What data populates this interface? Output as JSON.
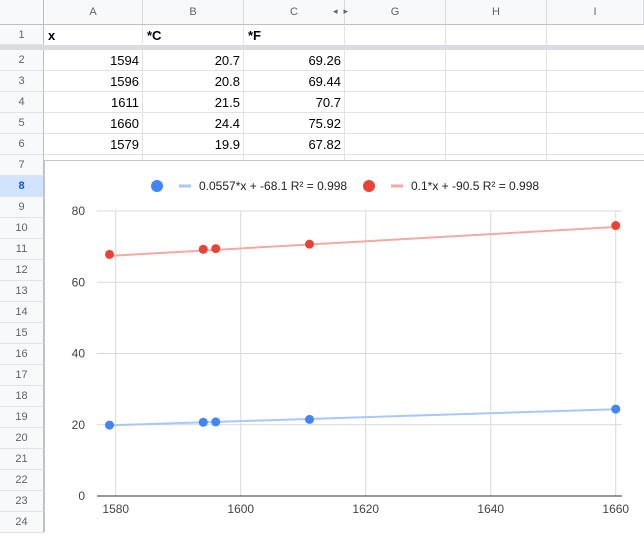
{
  "sheet": {
    "columns": [
      "A",
      "B",
      "C",
      "G",
      "H",
      "I"
    ],
    "rows": [
      "1",
      "2",
      "3",
      "4",
      "5",
      "6",
      "7",
      "8",
      "9",
      "10",
      "11",
      "12",
      "13",
      "14",
      "15",
      "16",
      "17",
      "18",
      "19",
      "20",
      "21",
      "22",
      "23",
      "24"
    ],
    "active_row": "8",
    "headers": {
      "a": "x",
      "b": "*C",
      "c": "*F"
    },
    "data": [
      {
        "a": "1594",
        "b": "20.7",
        "c": "69.26"
      },
      {
        "a": "1596",
        "b": "20.8",
        "c": "69.44"
      },
      {
        "a": "1611",
        "b": "21.5",
        "c": "70.7"
      },
      {
        "a": "1660",
        "b": "24.4",
        "c": "75.92"
      },
      {
        "a": "1579",
        "b": "19.9",
        "c": "67.82"
      }
    ]
  },
  "chart_data": {
    "type": "scatter",
    "title": "",
    "xlabel": "",
    "ylabel": "",
    "xlim": [
      1577,
      1661
    ],
    "ylim": [
      0,
      80
    ],
    "xticks": [
      "1580",
      "1600",
      "1620",
      "1640",
      "1660"
    ],
    "yticks": [
      "0",
      "20",
      "40",
      "60",
      "80"
    ],
    "grid": true,
    "legend_position": "top",
    "series": [
      {
        "x": [
          1594,
          1596,
          1611,
          1660,
          1579
        ],
        "y": [
          20.7,
          20.8,
          21.5,
          24.4,
          19.9
        ],
        "color": "#4285f4",
        "trend_color": "#a8c7fa",
        "trendline": {
          "slope": 0.0557,
          "intercept": -68.1
        },
        "trendline_label": "0.0557*x + -68.1 R² = 0.998"
      },
      {
        "x": [
          1594,
          1596,
          1611,
          1660,
          1579
        ],
        "y": [
          69.26,
          69.44,
          70.7,
          75.92,
          67.82
        ],
        "color": "#ea4335",
        "trend_color": "#f4a9a4",
        "trendline": {
          "slope": 0.1,
          "intercept": -90.5
        },
        "trendline_label": "0.1*x + -90.5 R² = 0.998"
      }
    ]
  }
}
